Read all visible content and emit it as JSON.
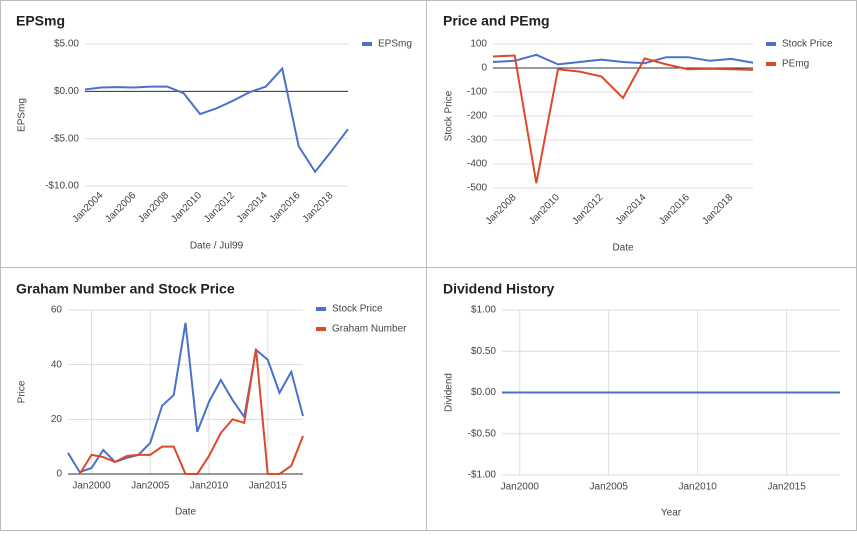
{
  "chart_data": [
    {
      "type": "line",
      "title": "EPSmg",
      "x_label": "Date / Jul99",
      "y_label": "EPSmg",
      "x": [
        2003,
        2004,
        2005,
        2006,
        2007,
        2008,
        2009,
        2010,
        2011,
        2012,
        2013,
        2014,
        2015,
        2016,
        2017,
        2018,
        2019
      ],
      "series": [
        {
          "name": "EPSmg",
          "color": "#4a72c9",
          "values": [
            0.2,
            0.4,
            0.45,
            0.4,
            0.5,
            0.5,
            -0.2,
            -2.4,
            -1.8,
            -1.0,
            -0.1,
            0.5,
            2.4,
            -5.8,
            -8.5,
            -6.3,
            -4.0
          ]
        }
      ],
      "xlim": [
        2003,
        2019
      ],
      "xticks": [
        {
          "value": 2004,
          "label": "Jan2004"
        },
        {
          "value": 2006,
          "label": "Jan2006"
        },
        {
          "value": 2008,
          "label": "Jan2008"
        },
        {
          "value": 2010,
          "label": "Jan2010"
        },
        {
          "value": 2012,
          "label": "Jan2012"
        },
        {
          "value": 2014,
          "label": "Jan2014"
        },
        {
          "value": 2016,
          "label": "Jan2016"
        },
        {
          "value": 2018,
          "label": "Jan2018"
        }
      ],
      "ylim": [
        -10,
        5
      ],
      "yticks": [
        {
          "value": 5,
          "label": "$5.00"
        },
        {
          "value": 0,
          "label": "$0.00"
        },
        {
          "value": -5,
          "label": "-$5.00"
        },
        {
          "value": -10,
          "label": "-$10.00"
        }
      ],
      "grid": "y",
      "legend": "right"
    },
    {
      "type": "line",
      "title": "Price and PEmg",
      "x_label": "Date",
      "y_label": "Stock Price",
      "x": [
        2007,
        2008,
        2009,
        2010,
        2011,
        2012,
        2013,
        2014,
        2015,
        2016,
        2017,
        2018,
        2019
      ],
      "series": [
        {
          "name": "Stock Price",
          "color": "#4a72c9",
          "values": [
            25,
            30,
            55,
            15,
            25,
            35,
            25,
            20,
            45,
            45,
            30,
            38,
            22
          ]
        },
        {
          "name": "PEmg",
          "color": "#dc4a2a",
          "values": [
            48,
            52,
            -480,
            -5,
            -15,
            -35,
            -125,
            40,
            15,
            -5,
            -3,
            -5,
            -8
          ]
        }
      ],
      "xlim": [
        2007,
        2019
      ],
      "xticks": [
        {
          "value": 2008,
          "label": "Jan2008"
        },
        {
          "value": 2010,
          "label": "Jan2010"
        },
        {
          "value": 2012,
          "label": "Jan2012"
        },
        {
          "value": 2014,
          "label": "Jan2014"
        },
        {
          "value": 2016,
          "label": "Jan2016"
        },
        {
          "value": 2018,
          "label": "Jan2018"
        }
      ],
      "ylim": [
        -500,
        100
      ],
      "yticks": [
        100,
        0,
        -100,
        -200,
        -300,
        -400,
        -500
      ],
      "grid": "y",
      "legend": "right"
    },
    {
      "type": "line",
      "title": "Graham Number and Stock Price",
      "x_label": "Date",
      "y_label": "Price",
      "x": [
        1998,
        1999,
        2000,
        2001,
        2002,
        2003,
        2004,
        2005,
        2006,
        2007,
        2008,
        2009,
        2010,
        2011,
        2012,
        2013,
        2014,
        2015,
        2016,
        2017,
        2018
      ],
      "series": [
        {
          "name": "Stock Price",
          "color": "#4a72c9",
          "values": [
            7.7,
            0.7,
            2.2,
            8.8,
            4.4,
            5.9,
            7,
            11.4,
            24.9,
            28.9,
            55.3,
            15.4,
            26.4,
            34.4,
            27.1,
            20.9,
            45.4,
            41.8,
            29.7,
            37.4,
            21.2
          ]
        },
        {
          "name": "Graham Number",
          "color": "#dc4a2a",
          "values": [
            null,
            0,
            7,
            6.2,
            4.4,
            6.6,
            7,
            7,
            10,
            10,
            0,
            0,
            6.6,
            15,
            20,
            18.7,
            45.8,
            0,
            0,
            3,
            13.9
          ]
        }
      ],
      "xlim": [
        1998,
        2018
      ],
      "xticks": [
        {
          "value": 2000,
          "label": "Jan2000"
        },
        {
          "value": 2005,
          "label": "Jan2005"
        },
        {
          "value": 2010,
          "label": "Jan2010"
        },
        {
          "value": 2015,
          "label": "Jan2015"
        }
      ],
      "ylim": [
        0,
        60
      ],
      "yticks": [
        0,
        20,
        40,
        60
      ],
      "grid": "both",
      "legend": "right"
    },
    {
      "type": "line",
      "title": "Dividend History",
      "x_label": "Year",
      "y_label": "Dividend",
      "x": [
        1999,
        2000,
        2001,
        2002,
        2003,
        2004,
        2005,
        2006,
        2007,
        2008,
        2009,
        2010,
        2011,
        2012,
        2013,
        2014,
        2015,
        2016,
        2017,
        2018
      ],
      "series": [
        {
          "color": "#4a72c9",
          "values": [
            0,
            0,
            0,
            0,
            0,
            0,
            0,
            0,
            0,
            0,
            0,
            0,
            0,
            0,
            0,
            0,
            0,
            0,
            0,
            0
          ]
        }
      ],
      "xlim": [
        1999,
        2018
      ],
      "xticks": [
        {
          "value": 2000,
          "label": "Jan2000"
        },
        {
          "value": 2005,
          "label": "Jan2005"
        },
        {
          "value": 2010,
          "label": "Jan2010"
        },
        {
          "value": 2015,
          "label": "Jan2015"
        }
      ],
      "ylim": [
        -1,
        1
      ],
      "yticks": [
        {
          "value": 1,
          "label": "$1.00"
        },
        {
          "value": 0.5,
          "label": "$0.50"
        },
        {
          "value": 0,
          "label": "$0.00"
        },
        {
          "value": -0.5,
          "label": "-$0.50"
        },
        {
          "value": -1,
          "label": "-$1.00"
        }
      ],
      "grid": "both",
      "legend": "none"
    }
  ]
}
